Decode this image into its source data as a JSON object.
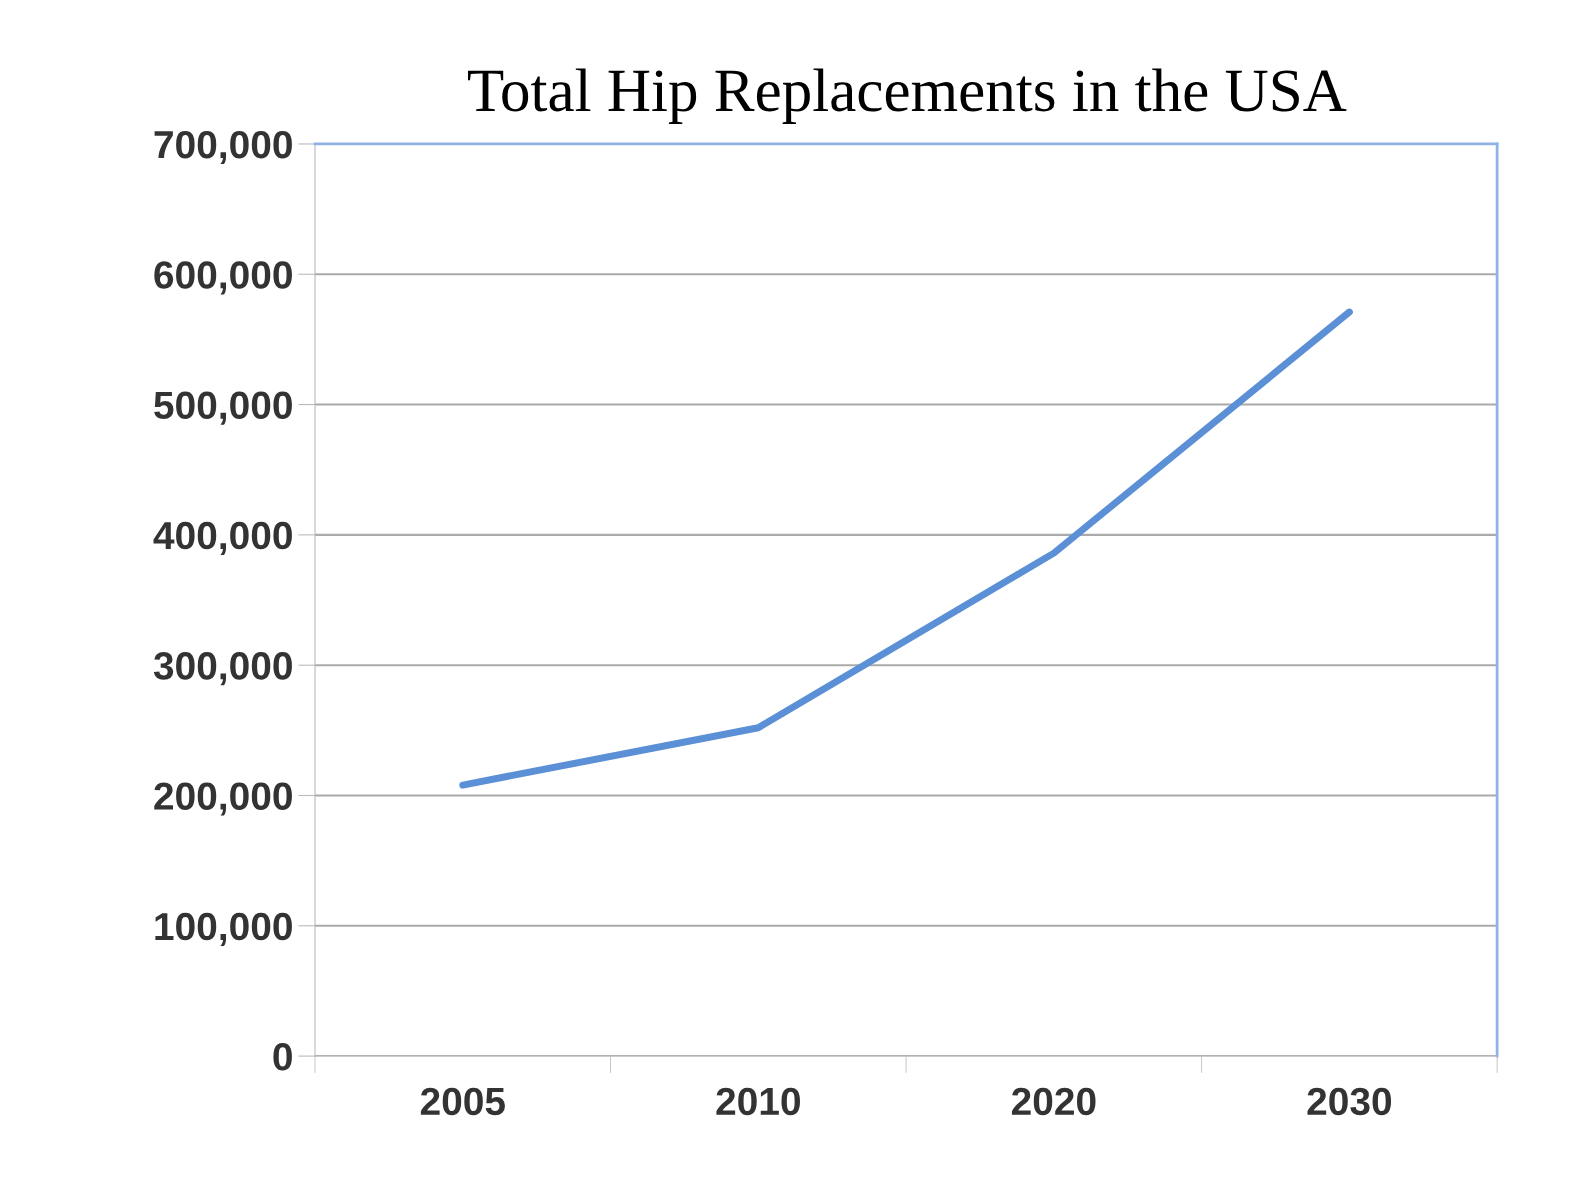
{
  "chart_data": {
    "type": "line",
    "title": "Total Hip Replacements in the USA",
    "categories": [
      "2005",
      "2010",
      "2020",
      "2030"
    ],
    "series": [
      {
        "color": "#5b8fd6",
        "values": [
          208000,
          252000,
          386000,
          571000
        ]
      }
    ],
    "ylim": [
      0,
      700000
    ],
    "yticks": [
      {
        "value": 0,
        "label": "0"
      },
      {
        "value": 100000,
        "label": "100,000"
      },
      {
        "value": 200000,
        "label": "200,000"
      },
      {
        "value": 300000,
        "label": "300,000"
      },
      {
        "value": 400000,
        "label": "400,000"
      },
      {
        "value": 500000,
        "label": "500,000"
      },
      {
        "value": 600000,
        "label": "600,000"
      },
      {
        "value": 700000,
        "label": "700,000"
      }
    ],
    "grid": "y",
    "marker": "none",
    "line_style": "solid"
  }
}
